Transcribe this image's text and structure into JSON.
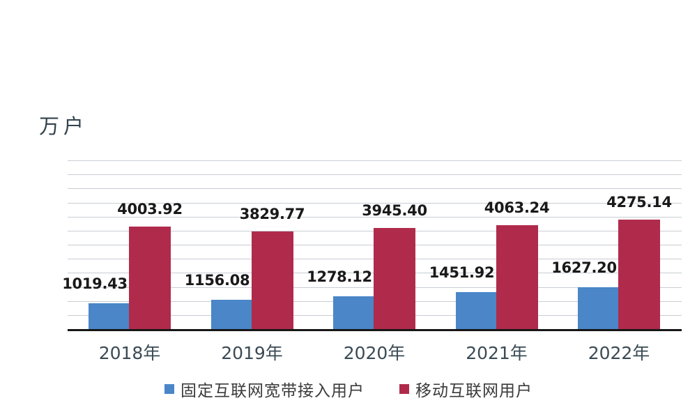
{
  "chart": {
    "unit_label": "万户"
  },
  "chart_data": {
    "type": "bar",
    "title": "",
    "ylabel": "万户",
    "xlabel": "",
    "categories": [
      "2018年",
      "2019年",
      "2020年",
      "2021年",
      "2022年"
    ],
    "series": [
      {
        "name": "固定互联网宽带接入用户",
        "color": "#4a86c8",
        "values": [
          1019.43,
          1156.08,
          1278.12,
          1451.92,
          1627.2
        ]
      },
      {
        "name": "移动互联网用户",
        "color": "#b02b4b",
        "values": [
          4003.92,
          3829.77,
          3945.4,
          4063.24,
          4275.14
        ]
      }
    ],
    "value_label_decimals": 2,
    "ylim": [
      0,
      6600
    ],
    "grid": true,
    "gridline_count": 12,
    "legend_position": "bottom"
  }
}
